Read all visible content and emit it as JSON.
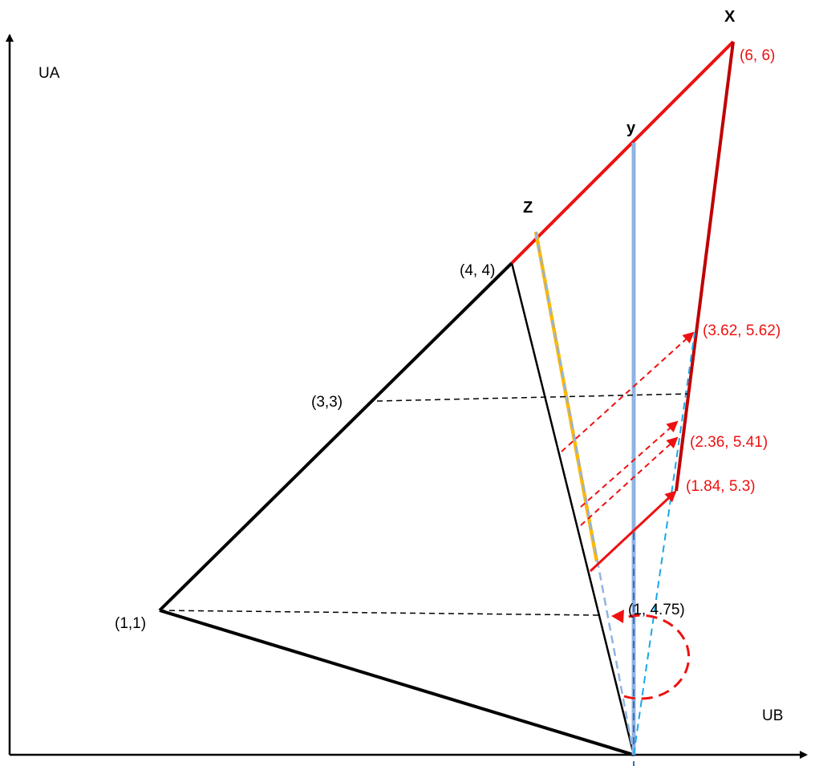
{
  "axes": {
    "y_label": "UA",
    "x_label": "UB"
  },
  "points": {
    "x": "X",
    "y": "y",
    "z": "Z"
  },
  "coords": {
    "p44": "(4, 4)",
    "p33": "(3,3)",
    "p11": "(1,1)",
    "p1_475": "(1, 4.75)",
    "p66": "(6, 6)",
    "p362": "(3.62, 5.62)",
    "p236": "(2.36, 5.41)",
    "p184": "(1.84, 5.3)"
  },
  "colors": {
    "black": "#000000",
    "red": "#ee1111",
    "dark_red": "#c00000",
    "orange": "#ffb800",
    "light_blue": "#8fb4e3",
    "cyan_dash": "#1aa7e8"
  }
}
